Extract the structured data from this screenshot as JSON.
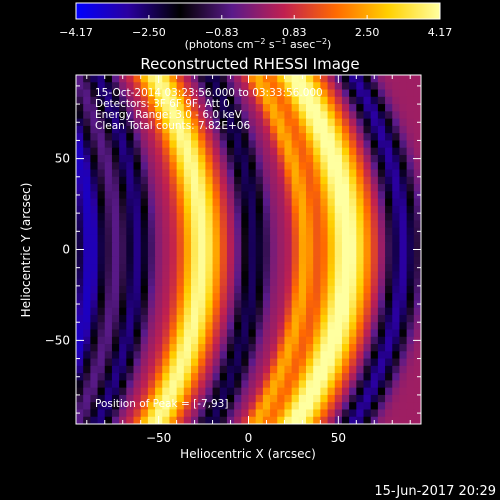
{
  "chart_data": {
    "type": "heatmap",
    "title": "Reconstructed RHESSI Image",
    "xlabel": "Heliocentric X (arcsec)",
    "ylabel": "Heliocentric Y (arcsec)",
    "xlim": [
      -96,
      96
    ],
    "ylim": [
      -96,
      96
    ],
    "xticks": [
      -50,
      0,
      50
    ],
    "yticks": [
      50,
      0,
      -50
    ],
    "xtick_labels": [
      "−50",
      "0",
      "50"
    ],
    "ytick_labels": [
      "50",
      "0",
      "−50"
    ],
    "colorbar": {
      "min": -4.17,
      "max": 4.17,
      "ticks": [
        -4.17,
        -2.5,
        -0.83,
        0.83,
        2.5,
        4.17
      ],
      "tick_labels": [
        "−4.17",
        "−2.50",
        "−0.83",
        "0.83",
        "2.50",
        "4.17"
      ],
      "unit_label": "(photons cm",
      "unit_exp1": "−2",
      "unit_mid1": " s",
      "unit_exp2": "−1",
      "unit_mid2": " asec",
      "unit_exp3": "−2",
      "unit_end": ")",
      "colormap": [
        "#0000ff",
        "#2a00a0",
        "#000000",
        "#5a1a8a",
        "#c02050",
        "#ff6a00",
        "#ffd000",
        "#ffffa0"
      ]
    },
    "annotations": [
      "15-Oct-2014 03:23:56.000 to 03:33:56.000",
      "Detectors: 3F 6F 9F, Att 0",
      "Energy Range: 3.0 - 6.0 keV",
      "Clean     Total counts: 7.82E+06"
    ],
    "peak_label": "Position of Peak = [-7,93]",
    "bands": [
      {
        "x0": -88,
        "curvature": 0.0024,
        "amplitude": -3.6,
        "width": 10
      },
      {
        "x0": -62,
        "curvature": 0.0024,
        "amplitude": -3.0,
        "width": 8
      },
      {
        "x0": -26,
        "curvature": 0.0028,
        "amplitude": 3.9,
        "width": 11
      },
      {
        "x0": 3,
        "curvature": 0.0026,
        "amplitude": -2.7,
        "width": 8
      },
      {
        "x0": 31,
        "curvature": 0.003,
        "amplitude": 2.2,
        "width": 6
      },
      {
        "x0": 55,
        "curvature": 0.0032,
        "amplitude": 4.17,
        "width": 13
      },
      {
        "x0": 86,
        "curvature": 0.003,
        "amplitude": -3.2,
        "width": 9
      }
    ],
    "grid": false,
    "legend": "none"
  },
  "footer_date": "15-Jun-2017 20:29"
}
